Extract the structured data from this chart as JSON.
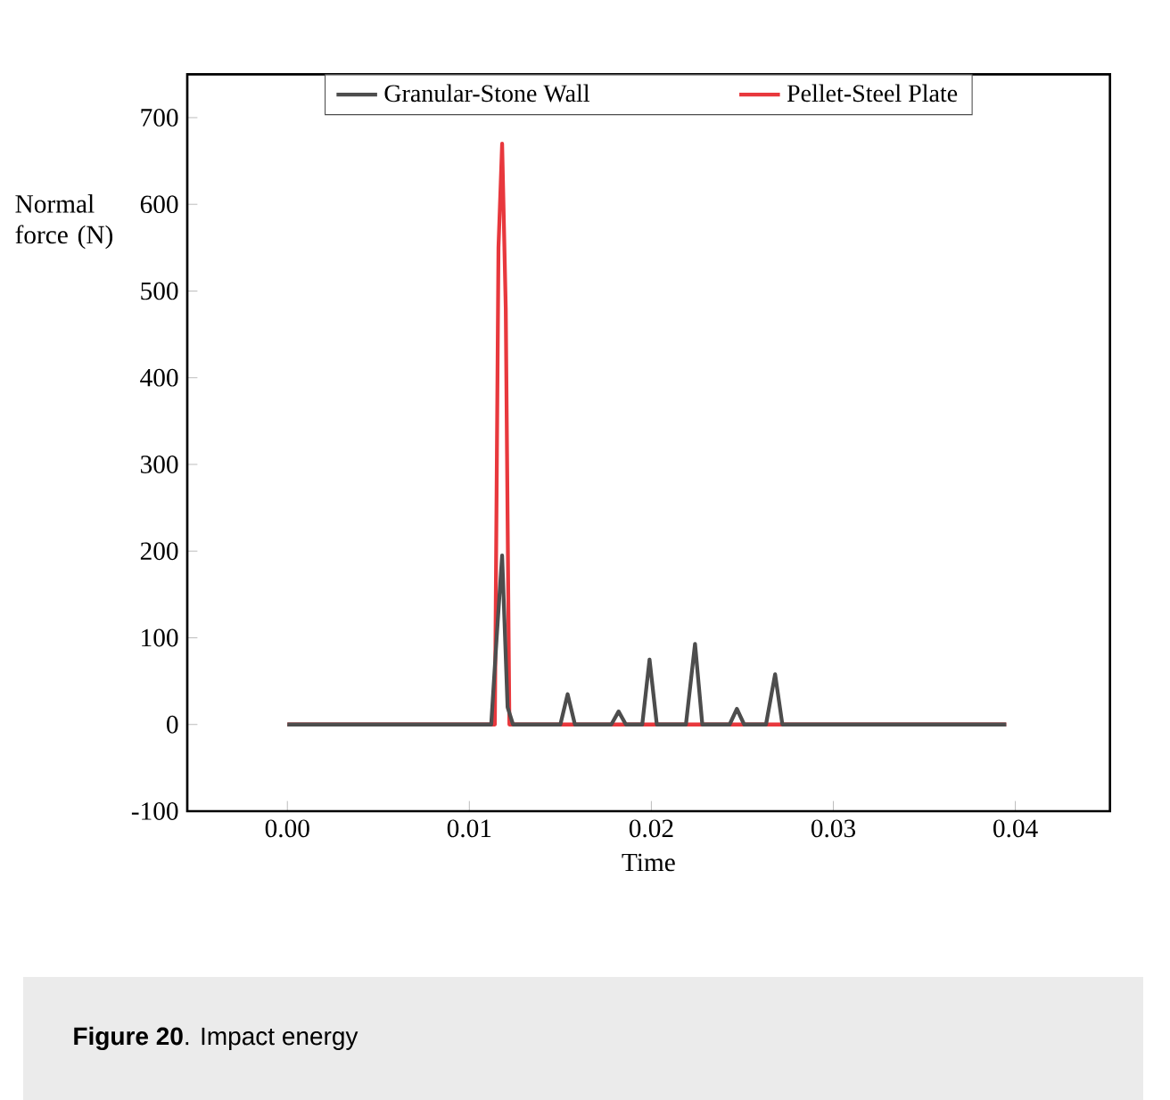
{
  "chart_data": {
    "type": "line",
    "xlabel": "Time",
    "ylabel": "Normal force (N)",
    "annotations": [
      "**Figure 20**. Impact energy"
    ],
    "xlim": [
      -0.0055,
      0.0452
    ],
    "ylim": [
      -100,
      750
    ],
    "xticks": [
      {
        "value": 0,
        "label": "0.00"
      },
      {
        "value": 0.01,
        "label": "0.01"
      },
      {
        "value": 0.02,
        "label": "0.02"
      },
      {
        "value": 0.03,
        "label": "0.03"
      },
      {
        "value": 0.04,
        "label": "0.04"
      }
    ],
    "yticks": [
      -100,
      0,
      100,
      200,
      300,
      400,
      500,
      600,
      700
    ],
    "legend": "top",
    "grid": false,
    "marker": "none",
    "line_style": "solid",
    "series": [
      {
        "name": "Granular-Stone Wall",
        "color": "#4d4d4d",
        "x": [
          0,
          0.0112,
          0.0115,
          0.0118,
          0.0121,
          0.0124,
          0.015,
          0.0154,
          0.0158,
          0.0178,
          0.0182,
          0.0186,
          0.0195,
          0.0199,
          0.0203,
          0.0219,
          0.0224,
          0.0228,
          0.0243,
          0.0247,
          0.0251,
          0.0263,
          0.0268,
          0.0272,
          0.0395
        ],
        "values": [
          0,
          0,
          100,
          195,
          20,
          0,
          0,
          35,
          0,
          0,
          15,
          0,
          0,
          75,
          0,
          0,
          93,
          0,
          0,
          18,
          0,
          0,
          58,
          0,
          0
        ]
      },
      {
        "name": "Pellet-Steel Plate",
        "color": "#e8383d",
        "x": [
          0,
          0.0114,
          0.0116,
          0.0118,
          0.012,
          0.0122,
          0.0395
        ],
        "values": [
          0,
          0,
          550,
          670,
          480,
          0,
          0
        ]
      }
    ]
  }
}
